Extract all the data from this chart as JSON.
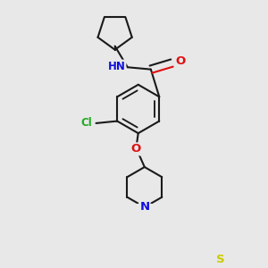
{
  "bg_color": "#e8e8e8",
  "bond_color": "#1a1a1a",
  "bond_width": 1.5,
  "atom_colors": {
    "N": "#1010dd",
    "O": "#dd1010",
    "Cl": "#22aa22",
    "S": "#cccc00",
    "H": "#777777",
    "C": "#1a1a1a"
  },
  "font_size": 8.5
}
